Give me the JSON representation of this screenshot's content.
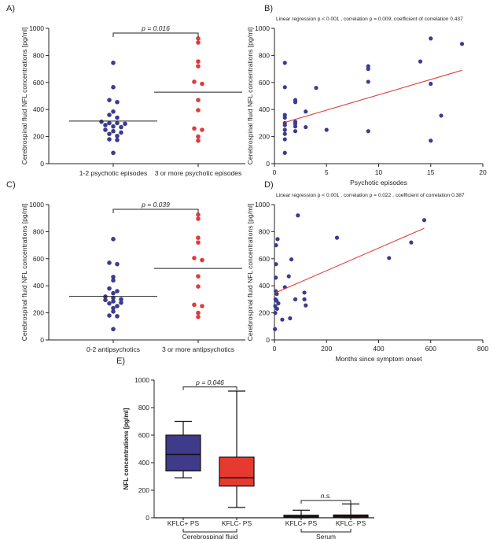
{
  "chart_data": [
    {
      "panel": "A)",
      "type": "scatter",
      "ylabel": "Cerebrospinal fluid NFL concentrations [pg/ml]",
      "ylim": [
        0,
        1000
      ],
      "yticks": [
        0,
        200,
        400,
        600,
        800,
        1000
      ],
      "categories": [
        "1-2 psychotic episodes",
        "3 or more psychotic episodes"
      ],
      "series": [
        {
          "name": "1-2 psychotic episodes",
          "color": "#3b3b8f",
          "mean": 315,
          "values": [
            745,
            565,
            470,
            455,
            385,
            360,
            340,
            310,
            300,
            300,
            295,
            285,
            275,
            270,
            250,
            240,
            230,
            220,
            205,
            180,
            175,
            80
          ]
        },
        {
          "name": "3 or more psychotic episodes",
          "color": "#e03a3a",
          "mean": 528,
          "values": [
            925,
            895,
            755,
            720,
            605,
            590,
            470,
            395,
            260,
            250,
            200,
            170
          ]
        }
      ],
      "annotation": "p = 0.016"
    },
    {
      "panel": "B)",
      "type": "scatter",
      "title": "Linear regression p < 0.001 , correlation p = 0.009, coefficient of correlation 0.437",
      "xlabel": "Psychotic episodes",
      "ylabel": "Cerebrospinal fluid NFL concentrations [pg/ml]",
      "xlim": [
        0,
        20
      ],
      "ylim": [
        0,
        1000
      ],
      "xticks": [
        0,
        5,
        10,
        15,
        20
      ],
      "yticks": [
        0,
        200,
        400,
        600,
        800,
        1000
      ],
      "color": "#3b3b8f",
      "points": [
        {
          "x": 1,
          "y": 745
        },
        {
          "x": 1,
          "y": 565
        },
        {
          "x": 1,
          "y": 360
        },
        {
          "x": 1,
          "y": 340
        },
        {
          "x": 1,
          "y": 300
        },
        {
          "x": 1,
          "y": 285
        },
        {
          "x": 1,
          "y": 250
        },
        {
          "x": 1,
          "y": 220
        },
        {
          "x": 1,
          "y": 180
        },
        {
          "x": 1,
          "y": 80
        },
        {
          "x": 2,
          "y": 470
        },
        {
          "x": 2,
          "y": 455
        },
        {
          "x": 2,
          "y": 310
        },
        {
          "x": 2,
          "y": 295
        },
        {
          "x": 2,
          "y": 275
        },
        {
          "x": 2,
          "y": 240
        },
        {
          "x": 3,
          "y": 385
        },
        {
          "x": 3,
          "y": 270
        },
        {
          "x": 4,
          "y": 560
        },
        {
          "x": 5,
          "y": 250
        },
        {
          "x": 9,
          "y": 720
        },
        {
          "x": 9,
          "y": 700
        },
        {
          "x": 9,
          "y": 605
        },
        {
          "x": 9,
          "y": 240
        },
        {
          "x": 14,
          "y": 755
        },
        {
          "x": 15,
          "y": 925
        },
        {
          "x": 15,
          "y": 590
        },
        {
          "x": 15,
          "y": 170
        },
        {
          "x": 16,
          "y": 355
        },
        {
          "x": 18,
          "y": 885
        }
      ],
      "regression": {
        "x": [
          1,
          18
        ],
        "y": [
          305,
          690
        ],
        "color": "#e03a3a"
      }
    },
    {
      "panel": "C)",
      "type": "scatter",
      "ylabel": "Cerebrospinal fluid NFL concentrations [pg/ml]",
      "ylim": [
        0,
        1000
      ],
      "yticks": [
        0,
        200,
        400,
        600,
        800,
        1000
      ],
      "categories": [
        "0-2 antipsychotics",
        "3 or more antipsychotics"
      ],
      "series": [
        {
          "name": "0-2 antipsychotics",
          "color": "#3b3b8f",
          "mean": 322,
          "values": [
            745,
            570,
            560,
            465,
            440,
            380,
            360,
            345,
            320,
            310,
            300,
            295,
            285,
            275,
            270,
            250,
            235,
            210,
            180,
            175,
            80
          ]
        },
        {
          "name": "3 or more antipsychotics",
          "color": "#e03a3a",
          "mean": 528,
          "values": [
            925,
            895,
            755,
            720,
            605,
            590,
            470,
            395,
            260,
            250,
            200,
            170
          ]
        }
      ],
      "annotation": "p = 0.039"
    },
    {
      "panel": "D)",
      "type": "scatter",
      "title": "Linear regression p < 0.001 , correlation p = 0.022 , coefficient of correlation 0.387",
      "xlabel": "Months since symptom onset",
      "ylabel": "Cerebrospinal fluid NFL concentrations [pg/ml]",
      "xlim": [
        0,
        800
      ],
      "ylim": [
        0,
        1000
      ],
      "xticks": [
        0,
        200,
        400,
        600,
        800
      ],
      "yticks": [
        0,
        200,
        400,
        600,
        800,
        1000
      ],
      "color": "#3b3b8f",
      "points": [
        {
          "x": 2,
          "y": 80
        },
        {
          "x": 3,
          "y": 200
        },
        {
          "x": 3,
          "y": 250
        },
        {
          "x": 4,
          "y": 300
        },
        {
          "x": 5,
          "y": 360
        },
        {
          "x": 5,
          "y": 460
        },
        {
          "x": 6,
          "y": 560
        },
        {
          "x": 6,
          "y": 700
        },
        {
          "x": 8,
          "y": 290
        },
        {
          "x": 9,
          "y": 340
        },
        {
          "x": 10,
          "y": 230
        },
        {
          "x": 12,
          "y": 745
        },
        {
          "x": 15,
          "y": 270
        },
        {
          "x": 30,
          "y": 150
        },
        {
          "x": 40,
          "y": 390
        },
        {
          "x": 55,
          "y": 470
        },
        {
          "x": 60,
          "y": 160
        },
        {
          "x": 65,
          "y": 595
        },
        {
          "x": 80,
          "y": 300
        },
        {
          "x": 90,
          "y": 920
        },
        {
          "x": 115,
          "y": 350
        },
        {
          "x": 115,
          "y": 300
        },
        {
          "x": 120,
          "y": 255
        },
        {
          "x": 240,
          "y": 755
        },
        {
          "x": 440,
          "y": 605
        },
        {
          "x": 525,
          "y": 720
        },
        {
          "x": 575,
          "y": 885
        }
      ],
      "regression": {
        "x": [
          0,
          575
        ],
        "y": [
          345,
          825
        ],
        "color": "#e03a3a"
      }
    },
    {
      "panel": "E)",
      "type": "box",
      "ylabel": "NFL concentrations [pg/ml]",
      "ylim": [
        0,
        1000
      ],
      "yticks": [
        0,
        200,
        400,
        600,
        800,
        1000
      ],
      "boxes": [
        {
          "label": "KFLC+ PS",
          "min": 290,
          "q1": 340,
          "median": 460,
          "q3": 600,
          "max": 700,
          "color": "#3f3a8a"
        },
        {
          "label": "KFLC- PS",
          "min": 75,
          "q1": 230,
          "median": 290,
          "q3": 440,
          "max": 920,
          "color": "#e63a30"
        },
        {
          "label": "KFLC+ PS",
          "min": 0,
          "q1": 2,
          "median": 10,
          "q3": 18,
          "max": 55,
          "color": "#1e1a3a"
        },
        {
          "label": "KFLC- PS",
          "min": 0,
          "q1": 3,
          "median": 12,
          "q3": 20,
          "max": 100,
          "color": "#4a1010"
        }
      ],
      "groups": [
        {
          "label": "Cerebrospinal fluid",
          "boxes": [
            0,
            1
          ]
        },
        {
          "label": "Serum",
          "boxes": [
            2,
            3
          ]
        }
      ],
      "annotations": [
        {
          "text": "p = 0.046",
          "between": [
            0,
            1
          ]
        },
        {
          "text": "n.s.",
          "between": [
            2,
            3
          ]
        }
      ]
    }
  ]
}
